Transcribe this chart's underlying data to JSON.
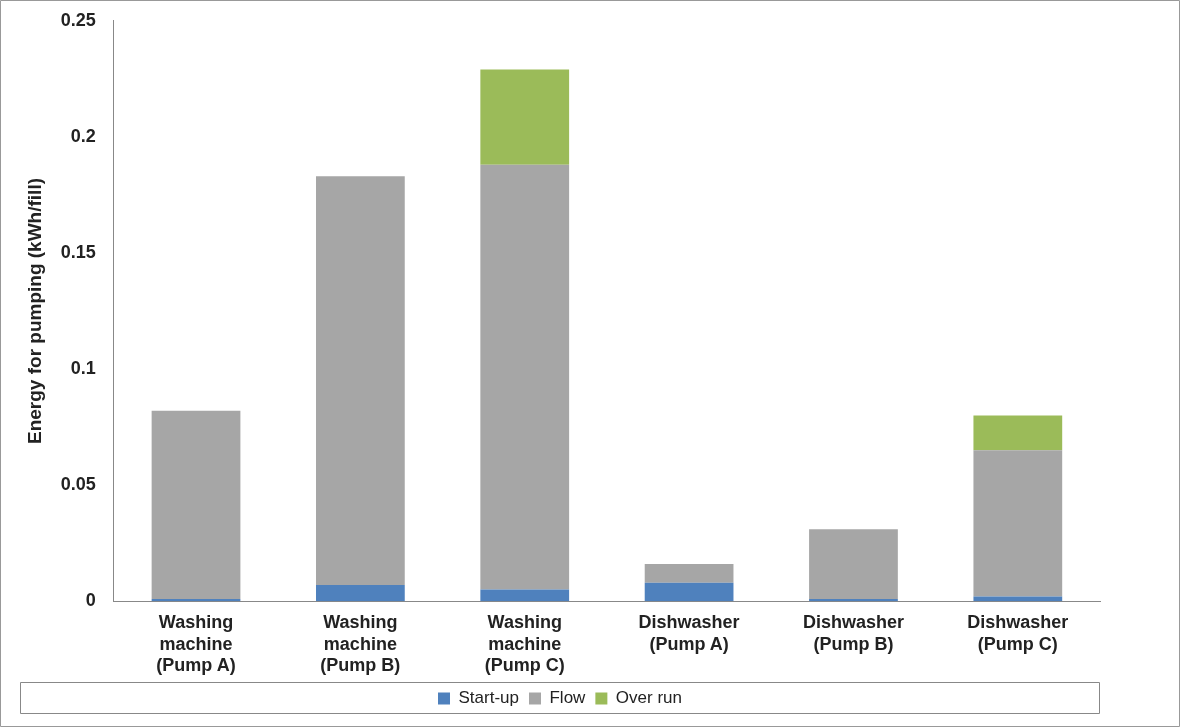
{
  "chart_data": {
    "type": "bar",
    "stacked": true,
    "ylabel": "Energy for pumping (kWh/fill)",
    "categories": [
      "Washing machine (Pump A)",
      "Washing machine (Pump B)",
      "Washing machine (Pump C)",
      "Dishwasher (Pump A)",
      "Dishwasher (Pump B)",
      "Dishwasher (Pump C)"
    ],
    "series": [
      {
        "name": "Start-up",
        "color": "#4f81bd",
        "values": [
          0.001,
          0.007,
          0.005,
          0.008,
          0.001,
          0.002
        ]
      },
      {
        "name": "Flow",
        "color": "#a6a6a6",
        "values": [
          0.081,
          0.176,
          0.183,
          0.008,
          0.03,
          0.063
        ]
      },
      {
        "name": "Over run",
        "color": "#9bbb59",
        "values": [
          0,
          0,
          0.041,
          0,
          0,
          0.015
        ]
      }
    ],
    "ylim": [
      0,
      0.25
    ],
    "yticks": [
      0,
      0.05,
      0.1,
      0.15,
      0.2,
      0.25
    ],
    "grid": false,
    "legend": "bottom"
  }
}
